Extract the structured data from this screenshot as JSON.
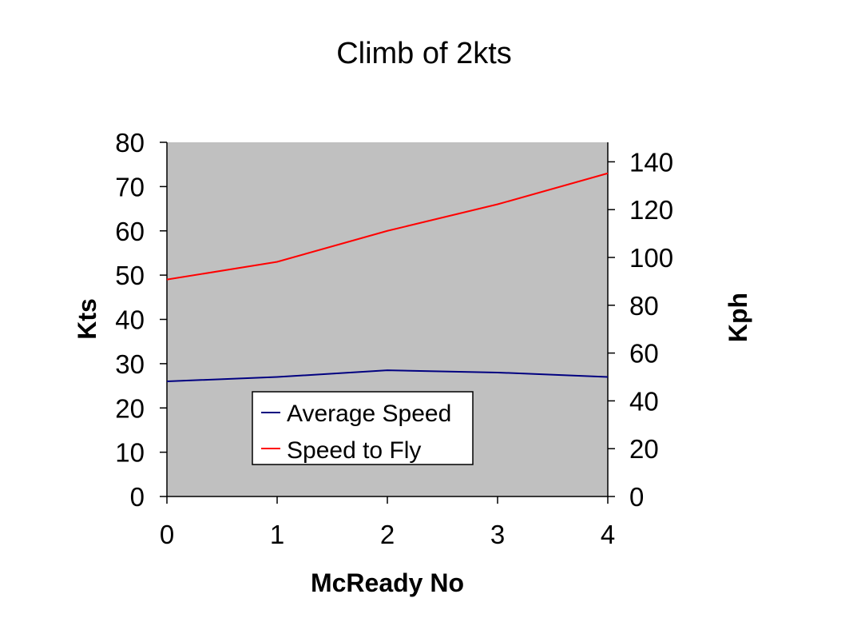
{
  "chart_data": {
    "type": "line",
    "title": "Climb of 2kts",
    "xlabel": "McReady No",
    "ylabel": "Kts",
    "y2label": "Kph",
    "categories": [
      "0",
      "1",
      "2",
      "3",
      "4"
    ],
    "x": [
      0,
      1,
      2,
      3,
      4
    ],
    "ylim": [
      0,
      80
    ],
    "yticks": [
      0,
      10,
      20,
      30,
      40,
      50,
      60,
      70,
      80
    ],
    "y2lim": [
      0,
      148.16
    ],
    "y2ticks": [
      0,
      20,
      40,
      60,
      80,
      100,
      120,
      140
    ],
    "grid": false,
    "plot_background": "#c0c0c0",
    "legend_position": "lower-center",
    "series": [
      {
        "name": "Average Speed",
        "color": "#000080",
        "values": [
          26,
          27,
          28.5,
          28,
          27
        ]
      },
      {
        "name": "Speed to Fly",
        "color": "#ff0000",
        "values": [
          49,
          53,
          60,
          66,
          73
        ]
      }
    ]
  }
}
